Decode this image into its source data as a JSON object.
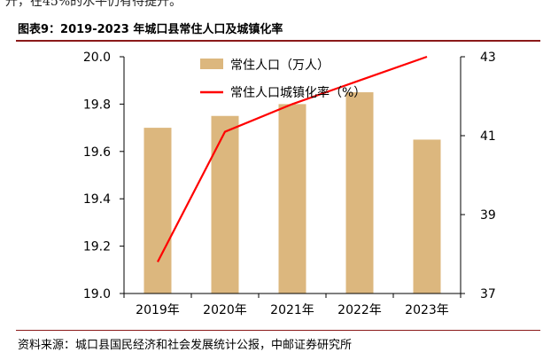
{
  "top_snippet": "升，在45%的水平仍有待提升。",
  "figure_title": "图表9：2019-2023 年城口县常住人口及城镇化率",
  "source_note": "资料来源：城口县国民经济和社会发展统计公报，中邮证券研究所",
  "colors": {
    "bar": "#dcb77e",
    "line": "#ff0000",
    "axis": "#000000",
    "title_rule": "#8b1a1a"
  },
  "chart_data": {
    "type": "bar",
    "title": "",
    "xlabel": "",
    "ylabel": "",
    "categories": [
      "2019年",
      "2020年",
      "2021年",
      "2022年",
      "2023年"
    ],
    "series": [
      {
        "name": "常住人口（万人）",
        "type": "bar",
        "axis": "left",
        "values": [
          19.7,
          19.75,
          19.8,
          19.85,
          19.65
        ]
      },
      {
        "name": "常住人口城镇化率（%）",
        "type": "line",
        "axis": "right",
        "values": [
          37.8,
          41.1,
          41.8,
          42.4,
          43.0
        ]
      }
    ],
    "y_left": {
      "ylim": [
        19.0,
        20.0
      ],
      "ticks": [
        19.0,
        19.2,
        19.4,
        19.6,
        19.8,
        20.0
      ],
      "tick_labels": [
        "19.0",
        "19.2",
        "19.4",
        "19.6",
        "19.8",
        "20.0"
      ]
    },
    "y_right": {
      "ylim": [
        37,
        43
      ],
      "ticks": [
        37,
        39,
        41,
        43
      ],
      "tick_labels": [
        "37",
        "39",
        "41",
        "43"
      ]
    },
    "grid": false,
    "legend_position": "top-center"
  }
}
